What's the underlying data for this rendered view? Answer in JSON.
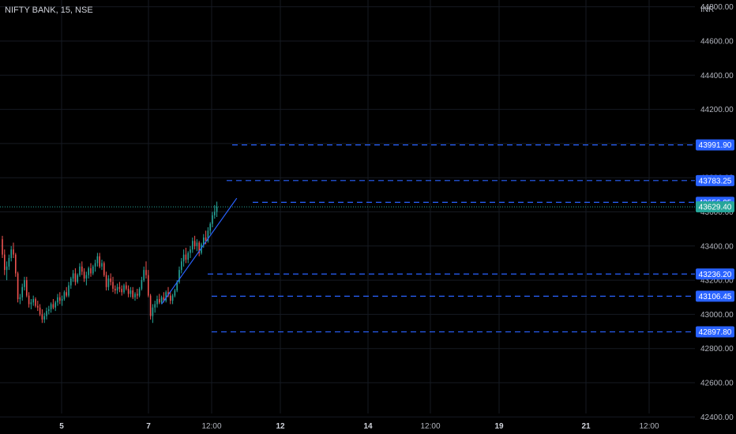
{
  "title": "NIFTY BANK, 15, NSE",
  "currency": "INR",
  "colors": {
    "background": "#000000",
    "grid": "#161a22",
    "up": "#26a69a",
    "down": "#ef5350",
    "level": "#2962ff",
    "level_label": "#2962ff",
    "last_price": "#26a69a",
    "trendline": "#2962ff",
    "axis_text": "#b2b5be"
  },
  "chart_data": {
    "type": "candlestick",
    "title": "NIFTY BANK, 15, NSE",
    "ylabel": "INR",
    "ylim": [
      42300,
      44840
    ],
    "yticks": [
      42400,
      42600,
      42800,
      43000,
      43200,
      43400,
      43600,
      43800,
      44000,
      44200,
      44400,
      44600,
      44800
    ],
    "x_ticks": [
      {
        "label": "5",
        "bold": true
      },
      {
        "label": "7",
        "bold": true
      },
      {
        "label": "12:00",
        "bold": false
      },
      {
        "label": "12",
        "bold": true
      },
      {
        "label": "14",
        "bold": true
      },
      {
        "label": "12:00",
        "bold": false
      },
      {
        "label": "19",
        "bold": true
      },
      {
        "label": "21",
        "bold": true
      },
      {
        "label": "12:00",
        "bold": false
      }
    ],
    "grid": true,
    "candles": [
      [
        43440,
        43460,
        43330,
        43350
      ],
      [
        43350,
        43380,
        43230,
        43260
      ],
      [
        43260,
        43310,
        43200,
        43280
      ],
      [
        43280,
        43350,
        43260,
        43330
      ],
      [
        43330,
        43400,
        43310,
        43380
      ],
      [
        43380,
        43420,
        43330,
        43350
      ],
      [
        43350,
        43360,
        43220,
        43240
      ],
      [
        43240,
        43250,
        43070,
        43090
      ],
      [
        43090,
        43120,
        43060,
        43100
      ],
      [
        43100,
        43180,
        43080,
        43160
      ],
      [
        43160,
        43220,
        43140,
        43200
      ],
      [
        43200,
        43220,
        43100,
        43110
      ],
      [
        43110,
        43130,
        43040,
        43060
      ],
      [
        43060,
        43090,
        43030,
        43070
      ],
      [
        43070,
        43110,
        43050,
        43090
      ],
      [
        43090,
        43100,
        43040,
        43050
      ],
      [
        43050,
        43080,
        43020,
        43040
      ],
      [
        43040,
        43060,
        42990,
        43000
      ],
      [
        43000,
        43030,
        42950,
        42970
      ],
      [
        42970,
        43010,
        42950,
        42990
      ],
      [
        42990,
        43040,
        42970,
        43020
      ],
      [
        43020,
        43050,
        43000,
        43030
      ],
      [
        43030,
        43070,
        43010,
        43060
      ],
      [
        43060,
        43090,
        43030,
        43040
      ],
      [
        43040,
        43080,
        43020,
        43070
      ],
      [
        43070,
        43120,
        43050,
        43100
      ],
      [
        43100,
        43130,
        43060,
        43080
      ],
      [
        43080,
        43110,
        43050,
        43090
      ],
      [
        43090,
        43140,
        43080,
        43130
      ],
      [
        43130,
        43160,
        43100,
        43110
      ],
      [
        43110,
        43190,
        43100,
        43170
      ],
      [
        43170,
        43220,
        43150,
        43210
      ],
      [
        43210,
        43260,
        43190,
        43240
      ],
      [
        43240,
        43270,
        43170,
        43190
      ],
      [
        43190,
        43240,
        43180,
        43230
      ],
      [
        43230,
        43300,
        43220,
        43280
      ],
      [
        43280,
        43310,
        43230,
        43250
      ],
      [
        43250,
        43270,
        43190,
        43210
      ],
      [
        43210,
        43250,
        43170,
        43230
      ],
      [
        43230,
        43280,
        43210,
        43270
      ],
      [
        43270,
        43300,
        43220,
        43240
      ],
      [
        43240,
        43290,
        43230,
        43280
      ],
      [
        43280,
        43320,
        43250,
        43300
      ],
      [
        43300,
        43360,
        43280,
        43340
      ],
      [
        43340,
        43360,
        43270,
        43280
      ],
      [
        43280,
        43320,
        43260,
        43300
      ],
      [
        43300,
        43310,
        43220,
        43230
      ],
      [
        43230,
        43250,
        43140,
        43160
      ],
      [
        43160,
        43230,
        43140,
        43210
      ],
      [
        43210,
        43240,
        43170,
        43190
      ],
      [
        43190,
        43220,
        43130,
        43150
      ],
      [
        43150,
        43170,
        43120,
        43140
      ],
      [
        43140,
        43180,
        43120,
        43160
      ],
      [
        43160,
        43190,
        43130,
        43150
      ],
      [
        43150,
        43170,
        43110,
        43130
      ],
      [
        43130,
        43180,
        43120,
        43170
      ],
      [
        43170,
        43190,
        43140,
        43150
      ],
      [
        43150,
        43170,
        43100,
        43120
      ],
      [
        43120,
        43160,
        43100,
        43140
      ],
      [
        43140,
        43160,
        43090,
        43100
      ],
      [
        43100,
        43130,
        43080,
        43120
      ],
      [
        43120,
        43150,
        43090,
        43110
      ],
      [
        43110,
        43160,
        43100,
        43150
      ],
      [
        43150,
        43220,
        43140,
        43200
      ],
      [
        43200,
        43280,
        43190,
        43260
      ],
      [
        43260,
        43310,
        43210,
        43230
      ],
      [
        43230,
        43260,
        43100,
        43110
      ],
      [
        43110,
        43120,
        42970,
        42990
      ],
      [
        42990,
        43060,
        42950,
        43040
      ],
      [
        43040,
        43080,
        43010,
        43060
      ],
      [
        43060,
        43110,
        43040,
        43090
      ],
      [
        43090,
        43120,
        43060,
        43070
      ],
      [
        43070,
        43110,
        43060,
        43100
      ],
      [
        43100,
        43130,
        43070,
        43080
      ],
      [
        43080,
        43140,
        43070,
        43130
      ],
      [
        43130,
        43160,
        43100,
        43110
      ],
      [
        43110,
        43130,
        43060,
        43080
      ],
      [
        43080,
        43120,
        43060,
        43110
      ],
      [
        43110,
        43150,
        43100,
        43140
      ],
      [
        43140,
        43200,
        43130,
        43190
      ],
      [
        43190,
        43280,
        43180,
        43260
      ],
      [
        43260,
        43330,
        43240,
        43310
      ],
      [
        43310,
        43380,
        43280,
        43350
      ],
      [
        43350,
        43390,
        43300,
        43320
      ],
      [
        43320,
        43370,
        43300,
        43360
      ],
      [
        43360,
        43400,
        43330,
        43380
      ],
      [
        43380,
        43450,
        43360,
        43430
      ],
      [
        43430,
        43460,
        43380,
        43400
      ],
      [
        43400,
        43440,
        43370,
        43420
      ],
      [
        43420,
        43430,
        43340,
        43360
      ],
      [
        43360,
        43420,
        43350,
        43410
      ],
      [
        43410,
        43470,
        43390,
        43450
      ],
      [
        43450,
        43490,
        43410,
        43430
      ],
      [
        43430,
        43510,
        43420,
        43490
      ],
      [
        43490,
        43540,
        43470,
        43530
      ],
      [
        43530,
        43600,
        43510,
        43580
      ],
      [
        43580,
        43640,
        43560,
        43600
      ],
      [
        43600,
        43660,
        43570,
        43629.4
      ]
    ],
    "levels": [
      {
        "value": 43991.9,
        "label": "43991.90"
      },
      {
        "value": 43783.25,
        "label": "43783.25"
      },
      {
        "value": 43656.05,
        "label": "43656.05"
      },
      {
        "value": 43236.2,
        "label": "43236.20"
      },
      {
        "value": 43106.45,
        "label": "43106.45"
      },
      {
        "value": 42897.8,
        "label": "42897.80"
      }
    ],
    "last_price": {
      "value": 43629.4,
      "label": "43629.40"
    },
    "trendline": {
      "from_candle": 72,
      "from_value": 43060,
      "to_candle": 106,
      "to_value": 43680
    }
  }
}
